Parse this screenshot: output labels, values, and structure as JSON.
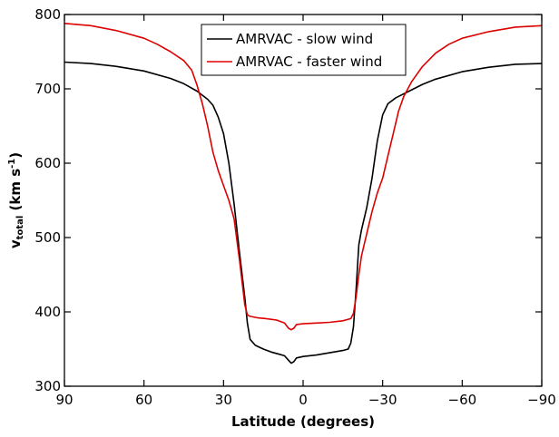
{
  "chart_data": {
    "type": "line",
    "title": "",
    "xlabel": "Latitude (degrees)",
    "ylabel": {
      "base": "v",
      "sub": "total",
      "unit_open": " (km s",
      "unit_sup": "-1",
      "unit_close": ")"
    },
    "xlim": [
      90,
      -90
    ],
    "ylim": [
      300,
      800
    ],
    "xticks": [
      90,
      60,
      30,
      0,
      -30,
      -60,
      -90
    ],
    "xtick_labels": [
      "90",
      "60",
      "30",
      "0",
      "−30",
      "−60",
      "−90"
    ],
    "yticks": [
      300,
      400,
      500,
      600,
      700,
      800
    ],
    "ytick_labels": [
      "300",
      "400",
      "500",
      "600",
      "700",
      "800"
    ],
    "grid": false,
    "legend_position": "top-center",
    "series": [
      {
        "name": "AMRVAC - slow wind",
        "color": "#000000",
        "points": [
          [
            90,
            736
          ],
          [
            80,
            734
          ],
          [
            70,
            730
          ],
          [
            60,
            724
          ],
          [
            50,
            714
          ],
          [
            45,
            707
          ],
          [
            40,
            697
          ],
          [
            36,
            686
          ],
          [
            34,
            678
          ],
          [
            32,
            662
          ],
          [
            30,
            640
          ],
          [
            28,
            600
          ],
          [
            26,
            545
          ],
          [
            24,
            480
          ],
          [
            22,
            420
          ],
          [
            21,
            385
          ],
          [
            20,
            363
          ],
          [
            18,
            355
          ],
          [
            15,
            350
          ],
          [
            12,
            346
          ],
          [
            9,
            343
          ],
          [
            7,
            341
          ],
          [
            5.5,
            335
          ],
          [
            4.5,
            331
          ],
          [
            3.5,
            333
          ],
          [
            2.5,
            338
          ],
          [
            0,
            340
          ],
          [
            -5,
            342
          ],
          [
            -10,
            345
          ],
          [
            -15,
            348
          ],
          [
            -17,
            350
          ],
          [
            -18,
            358
          ],
          [
            -19,
            380
          ],
          [
            -20,
            430
          ],
          [
            -21,
            490
          ],
          [
            -22,
            510
          ],
          [
            -24,
            540
          ],
          [
            -26,
            580
          ],
          [
            -28,
            630
          ],
          [
            -30,
            665
          ],
          [
            -32,
            680
          ],
          [
            -35,
            688
          ],
          [
            -40,
            697
          ],
          [
            -45,
            706
          ],
          [
            -50,
            713
          ],
          [
            -60,
            723
          ],
          [
            -70,
            729
          ],
          [
            -80,
            733
          ],
          [
            -90,
            734
          ]
        ]
      },
      {
        "name": "AMRVAC - faster wind",
        "color": "#dd0000",
        "points": [
          [
            90,
            788
          ],
          [
            80,
            785
          ],
          [
            70,
            778
          ],
          [
            60,
            768
          ],
          [
            55,
            760
          ],
          [
            50,
            750
          ],
          [
            45,
            738
          ],
          [
            42,
            725
          ],
          [
            40,
            705
          ],
          [
            38,
            680
          ],
          [
            36,
            650
          ],
          [
            34,
            615
          ],
          [
            32,
            590
          ],
          [
            30,
            570
          ],
          [
            28,
            550
          ],
          [
            26,
            525
          ],
          [
            24,
            470
          ],
          [
            23,
            440
          ],
          [
            22,
            410
          ],
          [
            21,
            396
          ],
          [
            20,
            394
          ],
          [
            17,
            392
          ],
          [
            14,
            391
          ],
          [
            10,
            389
          ],
          [
            7,
            385
          ],
          [
            5.5,
            378
          ],
          [
            4.5,
            376
          ],
          [
            3.5,
            378
          ],
          [
            2.5,
            383
          ],
          [
            0,
            384
          ],
          [
            -5,
            385
          ],
          [
            -10,
            386
          ],
          [
            -15,
            388
          ],
          [
            -18,
            391
          ],
          [
            -19,
            398
          ],
          [
            -20,
            420
          ],
          [
            -21,
            450
          ],
          [
            -22,
            475
          ],
          [
            -24,
            505
          ],
          [
            -26,
            535
          ],
          [
            -28,
            560
          ],
          [
            -30,
            580
          ],
          [
            -32,
            610
          ],
          [
            -34,
            640
          ],
          [
            -36,
            670
          ],
          [
            -38,
            690
          ],
          [
            -41,
            710
          ],
          [
            -45,
            730
          ],
          [
            -50,
            748
          ],
          [
            -55,
            760
          ],
          [
            -60,
            768
          ],
          [
            -70,
            777
          ],
          [
            -80,
            783
          ],
          [
            -90,
            785
          ]
        ]
      }
    ]
  }
}
